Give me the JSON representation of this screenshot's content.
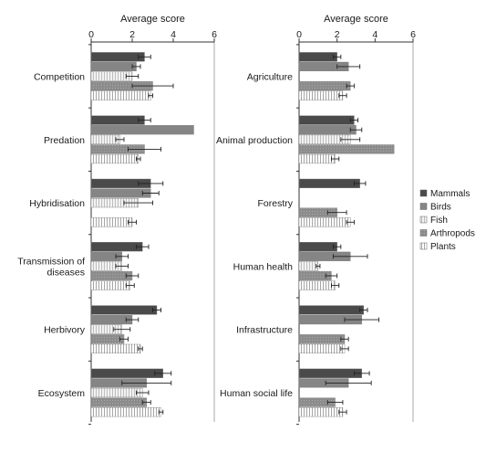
{
  "colors": {
    "Mammals": "#4a4a4a",
    "Birds": "#858585",
    "Fish": "#d6d6d6",
    "Arthropods": "#9c9c9c",
    "Plants": "#e0e0e0",
    "axis": "#333333",
    "grid": "#a8a8a8"
  },
  "legend": {
    "placement": "right",
    "series": [
      "Mammals",
      "Birds",
      "Fish",
      "Arthropods",
      "Plants"
    ]
  },
  "chart_data": [
    {
      "type": "bar",
      "orientation": "horizontal",
      "xlabel": "Average score",
      "xlim": [
        0,
        6
      ],
      "xticks": [
        0,
        2,
        4,
        6
      ],
      "grid": "vertical at 6",
      "categories": [
        "Competition",
        "Predation",
        "Hybridisation",
        "Transmission of diseases",
        "Herbivory",
        "Ecosystem"
      ],
      "category_lines": [
        [
          "Competition"
        ],
        [
          "Predation"
        ],
        [
          "Hybridisation"
        ],
        [
          "Transmission of",
          "diseases"
        ],
        [
          "Herbivory"
        ],
        [
          "Ecosystem"
        ]
      ],
      "series": [
        {
          "name": "Mammals",
          "values": [
            2.6,
            2.6,
            2.9,
            2.5,
            3.2,
            3.5
          ],
          "errors": [
            0.3,
            0.3,
            0.6,
            0.3,
            0.2,
            0.4
          ]
        },
        {
          "name": "Birds",
          "values": [
            2.2,
            5.0,
            2.9,
            1.5,
            2.0,
            2.7
          ],
          "errors": [
            0.2,
            0.0,
            0.4,
            0.3,
            0.3,
            1.2
          ]
        },
        {
          "name": "Fish",
          "values": [
            2.0,
            1.4,
            2.3,
            1.5,
            1.5,
            2.5
          ],
          "errors": [
            0.3,
            0.2,
            0.7,
            0.3,
            0.4,
            0.3
          ]
        },
        {
          "name": "Arthropods",
          "values": [
            3.0,
            2.6,
            null,
            2.0,
            1.6,
            2.7
          ],
          "errors": [
            1.0,
            0.8,
            null,
            0.3,
            0.2,
            0.2
          ]
        },
        {
          "name": "Plants",
          "values": [
            2.9,
            2.3,
            2.0,
            1.9,
            2.4,
            3.4
          ],
          "errors": [
            0.1,
            0.1,
            0.2,
            0.2,
            0.1,
            0.1
          ]
        }
      ]
    },
    {
      "type": "bar",
      "orientation": "horizontal",
      "xlabel": "Average score",
      "xlim": [
        0,
        6
      ],
      "xticks": [
        0,
        2,
        4,
        6
      ],
      "grid": "vertical at 6",
      "categories": [
        "Agriculture",
        "Animal production",
        "Forestry",
        "Human health",
        "Infrastructure",
        "Human social life"
      ],
      "category_lines": [
        [
          "Agriculture"
        ],
        [
          "Animal production"
        ],
        [
          "Forestry"
        ],
        [
          "Human health"
        ],
        [
          "Infrastructure"
        ],
        [
          "Human social life"
        ]
      ],
      "series": [
        {
          "name": "Mammals",
          "values": [
            2.0,
            2.9,
            3.2,
            2.0,
            3.4,
            3.3
          ],
          "errors": [
            0.2,
            0.2,
            0.3,
            0.2,
            0.2,
            0.4
          ]
        },
        {
          "name": "Birds",
          "values": [
            2.6,
            3.0,
            null,
            2.7,
            3.3,
            2.6
          ],
          "errors": [
            0.6,
            0.3,
            null,
            0.9,
            0.9,
            1.2
          ]
        },
        {
          "name": "Fish",
          "values": [
            null,
            2.7,
            null,
            1.0,
            null,
            null
          ],
          "errors": [
            null,
            0.5,
            null,
            0.1,
            null,
            null
          ]
        },
        {
          "name": "Arthropods",
          "values": [
            2.7,
            5.0,
            2.0,
            1.7,
            2.4,
            1.9
          ],
          "errors": [
            0.2,
            0.0,
            0.5,
            0.3,
            0.2,
            0.4
          ]
        },
        {
          "name": "Plants",
          "values": [
            2.3,
            1.9,
            2.7,
            1.9,
            2.4,
            2.3
          ],
          "errors": [
            0.2,
            0.2,
            0.2,
            0.2,
            0.2,
            0.2
          ]
        }
      ]
    }
  ]
}
